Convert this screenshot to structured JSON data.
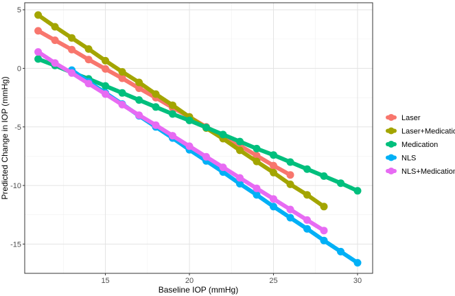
{
  "chart_data": {
    "type": "line",
    "title": "",
    "xlabel": "Baseline IOP (mmHg)",
    "ylabel": "Predicted Change in IOP (mmHg)",
    "xlim": [
      10.2,
      30.9
    ],
    "ylim": [
      -17.5,
      5.6
    ],
    "x_ticks": [
      15,
      20,
      25,
      30
    ],
    "y_ticks": [
      5,
      0,
      -5,
      -10,
      -15
    ],
    "x_tick_labels": [
      "15",
      "20",
      "25",
      "30"
    ],
    "y_tick_labels": [
      "5",
      "0",
      "-5",
      "-10",
      "-15"
    ],
    "grid": true,
    "legend_position": "right",
    "series": [
      {
        "name": "Laser",
        "color": "#F8766D",
        "x": [
          11,
          12,
          13,
          14,
          15,
          16,
          17,
          18,
          19,
          20,
          21,
          22,
          23,
          24,
          25,
          26
        ],
        "y": [
          3.2,
          2.4,
          1.6,
          0.75,
          -0.05,
          -0.85,
          -1.7,
          -2.5,
          -3.35,
          -4.15,
          -5.0,
          -5.8,
          -6.6,
          -7.45,
          -8.3,
          -9.1
        ]
      },
      {
        "name": "Laser+Medication",
        "color": "#A3A500",
        "x": [
          11,
          12,
          13,
          14,
          15,
          16,
          17,
          18,
          19,
          20,
          21,
          22,
          23,
          24,
          25,
          26,
          27,
          28
        ],
        "y": [
          4.55,
          3.55,
          2.6,
          1.65,
          0.65,
          -0.3,
          -1.2,
          -2.2,
          -3.15,
          -4.15,
          -5.1,
          -6.0,
          -7.0,
          -7.95,
          -8.9,
          -9.9,
          -10.8,
          -11.8
        ]
      },
      {
        "name": "Medication",
        "color": "#00BF7D",
        "x": [
          11,
          12,
          13,
          14,
          15,
          16,
          17,
          18,
          19,
          20,
          21,
          22,
          23,
          24,
          25,
          26,
          27,
          28,
          29,
          30
        ],
        "y": [
          0.8,
          0.25,
          -0.35,
          -0.9,
          -1.5,
          -2.1,
          -2.7,
          -3.3,
          -3.9,
          -4.45,
          -5.05,
          -5.65,
          -6.25,
          -6.85,
          -7.4,
          -8.0,
          -8.6,
          -9.2,
          -9.8,
          -10.45
        ]
      },
      {
        "name": "NLS",
        "color": "#00B0F6",
        "x": [
          13,
          14,
          15,
          16,
          17,
          18,
          19,
          20,
          21,
          22,
          23,
          24,
          25,
          26,
          27,
          28,
          29,
          30
        ],
        "y": [
          -0.15,
          -1.15,
          -2.1,
          -3.05,
          -4.05,
          -5.0,
          -5.95,
          -6.95,
          -7.9,
          -8.85,
          -9.85,
          -10.8,
          -11.8,
          -12.75,
          -13.7,
          -14.7,
          -15.65,
          -16.6
        ]
      },
      {
        "name": "NLS+Medication",
        "color": "#E76BF3",
        "x": [
          11,
          12,
          13,
          14,
          15,
          16,
          17,
          18,
          19,
          20,
          21,
          22,
          23,
          24,
          25,
          26,
          27,
          28
        ],
        "y": [
          1.4,
          0.45,
          -0.4,
          -1.3,
          -2.2,
          -3.1,
          -4.0,
          -4.85,
          -5.75,
          -6.65,
          -7.55,
          -8.45,
          -9.35,
          -10.25,
          -11.15,
          -12.05,
          -12.95,
          -13.85
        ]
      }
    ]
  }
}
